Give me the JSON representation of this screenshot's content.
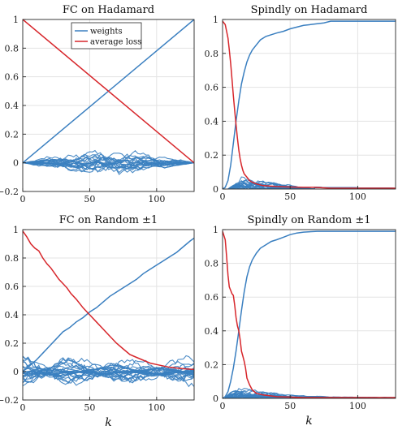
{
  "chart_data": [
    {
      "type": "line",
      "title": "FC on Hadamard",
      "xlabel": "",
      "ylabel": "",
      "xlim": [
        0,
        128
      ],
      "ylim": [
        -0.2,
        1
      ],
      "xticks": [
        0,
        50,
        100
      ],
      "yticks": [
        -0.2,
        0,
        0.2,
        0.4,
        0.6,
        0.8,
        1
      ],
      "xtick_labels": [
        "0",
        "50",
        "100"
      ],
      "ytick_labels": [
        "−0.2",
        "0",
        "0.2",
        "0.4",
        "0.6",
        "0.8",
        "1"
      ],
      "grid": true,
      "legend": {
        "placement": "top-center",
        "entries": [
          {
            "label": "weights",
            "color": "#3a7fc0"
          },
          {
            "label": "average loss",
            "color": "#d7262b"
          }
        ]
      },
      "weights_band": {
        "x_start": 0,
        "x_end": 128,
        "amplitude": 0.09,
        "count": 20,
        "shape": "lens"
      },
      "series": [
        {
          "name": "weights",
          "color": "#3a7fc0",
          "x": [
            0,
            128
          ],
          "y": [
            0,
            1
          ]
        },
        {
          "name": "average loss",
          "color": "#d7262b",
          "x": [
            0,
            128
          ],
          "y": [
            1,
            0
          ]
        }
      ]
    },
    {
      "type": "line",
      "title": "Spindly on Hadamard",
      "xlabel": "",
      "ylabel": "",
      "xlim": [
        0,
        128
      ],
      "ylim": [
        0,
        1
      ],
      "xticks": [
        0,
        50,
        100
      ],
      "yticks": [
        0,
        0.2,
        0.4,
        0.6,
        0.8,
        1
      ],
      "xtick_labels": [
        "0",
        "50",
        "100"
      ],
      "ytick_labels": [
        "0",
        "0.2",
        "0.4",
        "0.6",
        "0.8",
        "1"
      ],
      "grid": true,
      "weights_band": {
        "x_start": 4,
        "x_end": 68,
        "amplitude": 0.08,
        "count": 18,
        "shape": "decay"
      },
      "series": [
        {
          "name": "weights",
          "color": "#3a7fc0",
          "x": [
            0,
            2,
            4,
            6,
            8,
            10,
            12,
            14,
            16,
            18,
            20,
            22,
            25,
            28,
            32,
            36,
            40,
            45,
            50,
            55,
            60,
            65,
            70,
            75,
            80,
            128
          ],
          "y": [
            0,
            0.01,
            0.05,
            0.14,
            0.27,
            0.4,
            0.52,
            0.62,
            0.69,
            0.75,
            0.79,
            0.82,
            0.85,
            0.88,
            0.9,
            0.91,
            0.92,
            0.93,
            0.945,
            0.955,
            0.965,
            0.97,
            0.975,
            0.98,
            0.99,
            0.99
          ]
        },
        {
          "name": "average loss",
          "color": "#d7262b",
          "x": [
            0,
            2,
            3,
            4,
            5,
            6,
            7,
            8,
            9,
            10,
            11,
            12,
            13,
            14,
            15,
            16,
            18,
            20,
            22,
            25,
            30,
            40,
            50,
            60,
            68,
            80,
            128
          ],
          "y": [
            0.99,
            0.97,
            0.93,
            0.89,
            0.82,
            0.74,
            0.65,
            0.55,
            0.46,
            0.38,
            0.3,
            0.23,
            0.18,
            0.14,
            0.11,
            0.09,
            0.07,
            0.05,
            0.04,
            0.03,
            0.02,
            0.015,
            0.012,
            0.01,
            0.01,
            0.005,
            0.005
          ]
        }
      ]
    },
    {
      "type": "line",
      "title": "FC on Random ±1",
      "xlabel": "k",
      "ylabel": "",
      "xlim": [
        0,
        128
      ],
      "ylim": [
        -0.2,
        1
      ],
      "xticks": [
        0,
        50,
        100
      ],
      "yticks": [
        -0.2,
        0,
        0.2,
        0.4,
        0.6,
        0.8,
        1
      ],
      "xtick_labels": [
        "0",
        "50",
        "100"
      ],
      "ytick_labels": [
        "−0.2",
        "0",
        "0.2",
        "0.4",
        "0.6",
        "0.8",
        "1"
      ],
      "grid": true,
      "weights_band": {
        "x_start": 0,
        "x_end": 128,
        "amplitude": 0.11,
        "count": 26,
        "shape": "ragged"
      },
      "series": [
        {
          "name": "weights",
          "color": "#3a7fc0",
          "x": [
            0,
            5,
            10,
            15,
            20,
            25,
            30,
            35,
            40,
            45,
            50,
            55,
            60,
            65,
            70,
            75,
            80,
            85,
            90,
            95,
            100,
            105,
            110,
            115,
            120,
            125,
            128
          ],
          "y": [
            0,
            0.04,
            0.08,
            0.13,
            0.18,
            0.23,
            0.28,
            0.31,
            0.35,
            0.38,
            0.42,
            0.45,
            0.49,
            0.53,
            0.56,
            0.59,
            0.62,
            0.65,
            0.69,
            0.72,
            0.75,
            0.78,
            0.81,
            0.84,
            0.88,
            0.92,
            0.94
          ]
        },
        {
          "name": "average loss",
          "color": "#d7262b",
          "x": [
            0,
            3,
            6,
            9,
            12,
            15,
            18,
            21,
            24,
            27,
            30,
            33,
            36,
            40,
            45,
            50,
            55,
            60,
            65,
            70,
            75,
            80,
            85,
            90,
            95,
            100,
            110,
            120,
            128
          ],
          "y": [
            0.99,
            0.95,
            0.9,
            0.87,
            0.85,
            0.8,
            0.76,
            0.73,
            0.69,
            0.65,
            0.62,
            0.59,
            0.55,
            0.51,
            0.45,
            0.4,
            0.35,
            0.3,
            0.25,
            0.2,
            0.16,
            0.12,
            0.1,
            0.08,
            0.06,
            0.05,
            0.03,
            0.02,
            0.015
          ]
        }
      ]
    },
    {
      "type": "line",
      "title": "Spindly on Random ±1",
      "xlabel": "k",
      "ylabel": "",
      "xlim": [
        0,
        128
      ],
      "ylim": [
        0,
        1
      ],
      "xticks": [
        0,
        50,
        100
      ],
      "yticks": [
        0,
        0.2,
        0.4,
        0.6,
        0.8,
        1
      ],
      "xtick_labels": [
        "0",
        "50",
        "100"
      ],
      "ytick_labels": [
        "0",
        "0.2",
        "0.4",
        "0.6",
        "0.8",
        "1"
      ],
      "grid": true,
      "weights_band": {
        "x_start": 2,
        "x_end": 128,
        "amplitude": 0.1,
        "count": 20,
        "shape": "decay-long"
      },
      "series": [
        {
          "name": "weights",
          "color": "#3a7fc0",
          "x": [
            0,
            2,
            4,
            6,
            8,
            10,
            12,
            14,
            16,
            18,
            20,
            22,
            25,
            28,
            32,
            36,
            40,
            45,
            50,
            55,
            60,
            70,
            80,
            100,
            128
          ],
          "y": [
            0,
            0.01,
            0.04,
            0.1,
            0.18,
            0.28,
            0.4,
            0.52,
            0.63,
            0.72,
            0.78,
            0.82,
            0.86,
            0.89,
            0.91,
            0.93,
            0.94,
            0.955,
            0.97,
            0.98,
            0.985,
            0.99,
            0.99,
            0.99,
            0.99
          ]
        },
        {
          "name": "average loss",
          "color": "#d7262b",
          "x": [
            0,
            2,
            3,
            4,
            5,
            6,
            7,
            8,
            9,
            10,
            11,
            12,
            13,
            14,
            15,
            16,
            17,
            18,
            20,
            22,
            25,
            30,
            40,
            60,
            128
          ],
          "y": [
            0.99,
            0.94,
            0.84,
            0.73,
            0.66,
            0.64,
            0.62,
            0.61,
            0.55,
            0.48,
            0.43,
            0.4,
            0.35,
            0.28,
            0.25,
            0.22,
            0.18,
            0.12,
            0.08,
            0.05,
            0.03,
            0.02,
            0.01,
            0.005,
            0.005
          ]
        }
      ]
    }
  ]
}
